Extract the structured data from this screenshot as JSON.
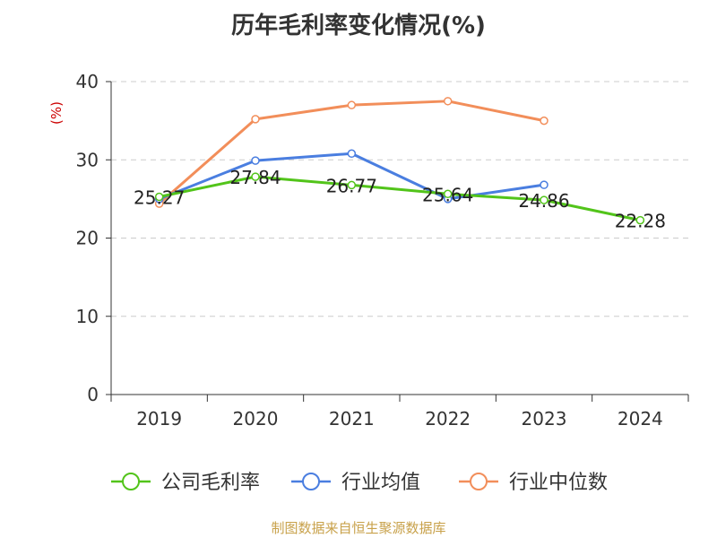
{
  "chart_data": {
    "type": "line",
    "title": "历年毛利率变化情况(%)",
    "ylabel": "(%)",
    "xlabel": "",
    "categories": [
      "2019",
      "2020",
      "2021",
      "2022",
      "2023",
      "2024"
    ],
    "ylim": [
      0,
      40
    ],
    "yticks": [
      0,
      10,
      20,
      30,
      40
    ],
    "grid": true,
    "legend_position": "bottom",
    "series": [
      {
        "name": "公司毛利率",
        "color": "#52c41a",
        "values": [
          25.27,
          27.84,
          26.77,
          25.64,
          24.86,
          22.28
        ],
        "labels": [
          "25.27",
          "27.84",
          "26.77",
          "25.64",
          "24.86",
          "22.28"
        ]
      },
      {
        "name": "行业均值",
        "color": "#4a7ee0",
        "values": [
          25.0,
          29.9,
          30.8,
          25.0,
          26.8,
          null
        ]
      },
      {
        "name": "行业中位数",
        "color": "#f28e5a",
        "values": [
          24.4,
          35.2,
          37.0,
          37.5,
          35.0,
          null
        ]
      }
    ]
  },
  "source_text": "制图数据来自恒生聚源数据库",
  "colors": {
    "axis": "#333333",
    "grid": "#cccccc",
    "ylabel": "#cc0000",
    "title": "#333333",
    "source": "#c8a14a"
  }
}
